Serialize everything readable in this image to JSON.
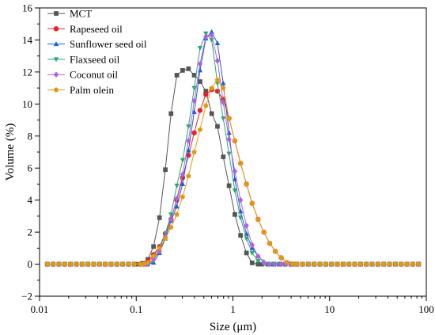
{
  "chart_data": {
    "type": "line",
    "xlabel": "Size (μm)",
    "ylabel": "Volume (%)",
    "x_scale": "log",
    "xlim": [
      0.01,
      100
    ],
    "ylim": [
      -2,
      16
    ],
    "x_ticks": [
      0.01,
      0.1,
      1,
      10,
      100
    ],
    "x_tick_labels": [
      "0.01",
      "0.1",
      "1",
      "10",
      "100"
    ],
    "y_ticks": [
      -2,
      0,
      2,
      4,
      6,
      8,
      10,
      12,
      14,
      16
    ],
    "y_tick_labels": [
      "−2",
      "0",
      "2",
      "4",
      "6",
      "8",
      "10",
      "12",
      "14",
      "16"
    ],
    "grid": false,
    "legend_position": "top-left",
    "series": [
      {
        "name": "MCT",
        "color": "#555555",
        "marker": "square",
        "points": [
          [
            0.1,
            0
          ],
          [
            0.115,
            0.05
          ],
          [
            0.132,
            0.3
          ],
          [
            0.151,
            1.1
          ],
          [
            0.174,
            2.9
          ],
          [
            0.2,
            5.9
          ],
          [
            0.229,
            9.4
          ],
          [
            0.263,
            11.8
          ],
          [
            0.302,
            12.1
          ],
          [
            0.347,
            12.2
          ],
          [
            0.398,
            11.8
          ],
          [
            0.457,
            11.4
          ],
          [
            0.525,
            10.8
          ],
          [
            0.603,
            9.4
          ],
          [
            0.692,
            8.6
          ],
          [
            0.794,
            6.7
          ],
          [
            0.912,
            4.9
          ],
          [
            1.047,
            3.1
          ],
          [
            1.2,
            1.8
          ],
          [
            1.38,
            0.7
          ],
          [
            1.58,
            0.08
          ],
          [
            1.82,
            0
          ]
        ]
      },
      {
        "name": "Rapeseed oil",
        "color": "#e8202a",
        "marker": "circle",
        "points": [
          [
            0.12,
            0
          ],
          [
            0.132,
            0.2
          ],
          [
            0.151,
            0.6
          ],
          [
            0.174,
            1.1
          ],
          [
            0.2,
            1.9
          ],
          [
            0.229,
            2.8
          ],
          [
            0.263,
            4.0
          ],
          [
            0.302,
            5.4
          ],
          [
            0.347,
            6.8
          ],
          [
            0.398,
            8.2
          ],
          [
            0.457,
            9.6
          ],
          [
            0.525,
            10.6
          ],
          [
            0.603,
            10.9
          ],
          [
            0.692,
            10.8
          ],
          [
            0.794,
            10.3
          ],
          [
            0.912,
            9.1
          ],
          [
            1.047,
            7.7
          ],
          [
            1.2,
            6.3
          ],
          [
            1.38,
            5.0
          ],
          [
            1.58,
            3.8
          ],
          [
            1.82,
            2.8
          ],
          [
            2.09,
            2.0
          ],
          [
            2.4,
            1.3
          ],
          [
            2.75,
            0.8
          ],
          [
            3.16,
            0.4
          ],
          [
            3.63,
            0.1
          ],
          [
            4.17,
            0
          ]
        ]
      },
      {
        "name": "Sunflower seed oil",
        "color": "#1f5fd6",
        "marker": "triangle-up",
        "points": [
          [
            0.132,
            0
          ],
          [
            0.151,
            0.1
          ],
          [
            0.174,
            0.7
          ],
          [
            0.2,
            1.6
          ],
          [
            0.229,
            2.7
          ],
          [
            0.263,
            3.6
          ],
          [
            0.302,
            5.0
          ],
          [
            0.347,
            7.1
          ],
          [
            0.398,
            9.5
          ],
          [
            0.457,
            12.1
          ],
          [
            0.525,
            14.1
          ],
          [
            0.603,
            14.5
          ],
          [
            0.692,
            13.8
          ],
          [
            0.794,
            11.3
          ],
          [
            0.912,
            8.2
          ],
          [
            1.047,
            5.3
          ],
          [
            1.2,
            3.3
          ],
          [
            1.38,
            1.9
          ],
          [
            1.58,
            1.0
          ],
          [
            1.82,
            0.5
          ],
          [
            2.09,
            0.15
          ],
          [
            2.4,
            0
          ]
        ]
      },
      {
        "name": "Flaxseed oil",
        "color": "#2ca86a",
        "marker": "triangle-down",
        "points": [
          [
            0.132,
            0
          ],
          [
            0.151,
            0.2
          ],
          [
            0.174,
            1.0
          ],
          [
            0.2,
            1.9
          ],
          [
            0.229,
            3.1
          ],
          [
            0.263,
            4.9
          ],
          [
            0.302,
            6.5
          ],
          [
            0.347,
            8.6
          ],
          [
            0.398,
            11.0
          ],
          [
            0.457,
            13.5
          ],
          [
            0.525,
            14.4
          ],
          [
            0.603,
            14.0
          ],
          [
            0.692,
            11.3
          ],
          [
            0.794,
            9.1
          ],
          [
            0.912,
            6.9
          ],
          [
            1.047,
            4.6
          ],
          [
            1.2,
            2.9
          ],
          [
            1.38,
            1.6
          ],
          [
            1.58,
            0.7
          ],
          [
            1.82,
            0.2
          ],
          [
            2.09,
            0
          ]
        ]
      },
      {
        "name": "Coconut oil",
        "color": "#b25fe0",
        "marker": "diamond",
        "points": [
          [
            0.132,
            0
          ],
          [
            0.151,
            0.3
          ],
          [
            0.174,
            0.8
          ],
          [
            0.2,
            1.7
          ],
          [
            0.229,
            2.8
          ],
          [
            0.263,
            4.1
          ],
          [
            0.302,
            5.6
          ],
          [
            0.347,
            7.7
          ],
          [
            0.398,
            10.2
          ],
          [
            0.457,
            12.5
          ],
          [
            0.525,
            14.2
          ],
          [
            0.603,
            14.3
          ],
          [
            0.692,
            12.7
          ],
          [
            0.794,
            10.1
          ],
          [
            0.912,
            7.8
          ],
          [
            1.047,
            5.8
          ],
          [
            1.2,
            4.0
          ],
          [
            1.38,
            2.4
          ],
          [
            1.58,
            1.2
          ],
          [
            1.82,
            0.5
          ],
          [
            2.09,
            0.1
          ],
          [
            2.4,
            0
          ],
          [
            2.75,
            0
          ],
          [
            3.16,
            0
          ]
        ]
      },
      {
        "name": "Palm olein",
        "color": "#e09a12",
        "marker": "pentagon",
        "points": [
          [
            0.12,
            0
          ],
          [
            0.132,
            0.1
          ],
          [
            0.151,
            0.5
          ],
          [
            0.174,
            1.0
          ],
          [
            0.2,
            1.6
          ],
          [
            0.229,
            2.3
          ],
          [
            0.263,
            3.1
          ],
          [
            0.302,
            4.2
          ],
          [
            0.347,
            5.5
          ],
          [
            0.398,
            7.0
          ],
          [
            0.457,
            8.4
          ],
          [
            0.525,
            9.9
          ],
          [
            0.603,
            11.0
          ],
          [
            0.692,
            11.5
          ],
          [
            0.794,
            11.0
          ],
          [
            0.912,
            9.1
          ],
          [
            1.047,
            7.7
          ],
          [
            1.2,
            6.3
          ],
          [
            1.38,
            5.0
          ],
          [
            1.58,
            3.8
          ],
          [
            1.82,
            2.8
          ],
          [
            2.09,
            2.0
          ],
          [
            2.4,
            1.3
          ],
          [
            2.75,
            0.8
          ],
          [
            3.16,
            0.4
          ],
          [
            3.63,
            0.1
          ],
          [
            4.17,
            0
          ]
        ]
      }
    ]
  }
}
